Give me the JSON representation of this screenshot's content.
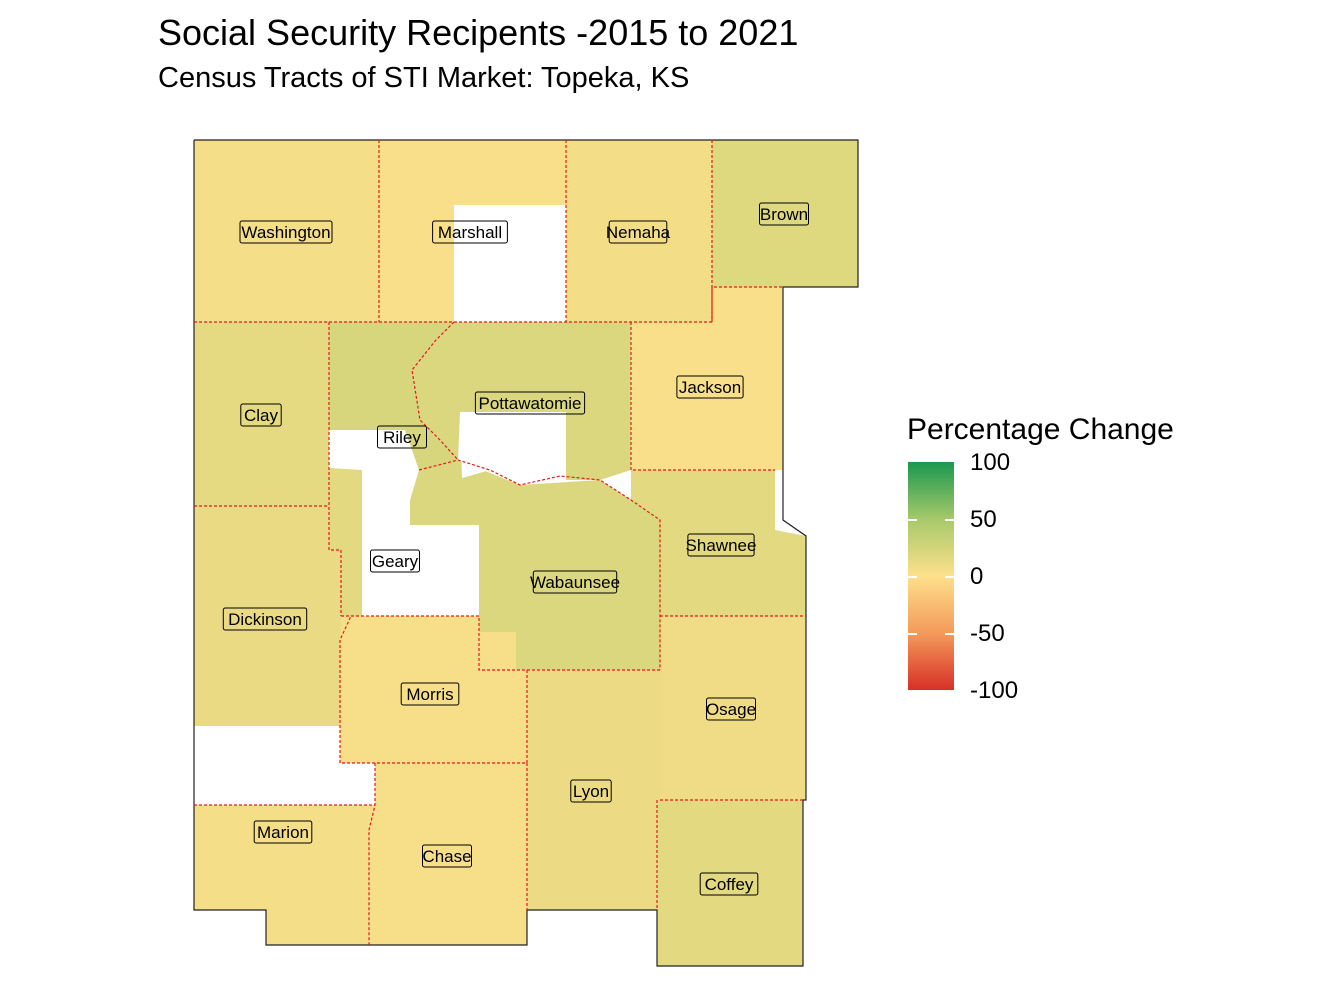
{
  "title": "Social Security Recipents -2015 to 2021",
  "subtitle": "Census Tracts of STI Market: Topeka, KS",
  "legend": {
    "title": "Percentage Change",
    "ticks": [
      "100",
      "50",
      "0",
      "-50",
      "-100"
    ],
    "colors": {
      "high": "#1a9850",
      "mid_high": "#a6c96a",
      "mid": "#fee08b",
      "mid_low": "#f49b5a",
      "low": "#d73027"
    }
  },
  "counties": [
    {
      "name": "Washington",
      "change": 5
    },
    {
      "name": "Marshall",
      "change": 2
    },
    {
      "name": "Nemaha",
      "change": 6
    },
    {
      "name": "Brown",
      "change": 18
    },
    {
      "name": "Clay",
      "change": 14
    },
    {
      "name": "Riley",
      "change": 22
    },
    {
      "name": "Pottawatomie",
      "change": 20
    },
    {
      "name": "Jackson",
      "change": 3
    },
    {
      "name": "Geary",
      "change": 16
    },
    {
      "name": "Shawnee",
      "change": 16
    },
    {
      "name": "Wabaunsee",
      "change": 20
    },
    {
      "name": "Dickinson",
      "change": 12
    },
    {
      "name": "Morris",
      "change": 4
    },
    {
      "name": "Osage",
      "change": 8
    },
    {
      "name": "Lyon",
      "change": 10
    },
    {
      "name": "Marion",
      "change": 5
    },
    {
      "name": "Chase",
      "change": 4
    },
    {
      "name": "Coffey",
      "change": 16
    }
  ]
}
